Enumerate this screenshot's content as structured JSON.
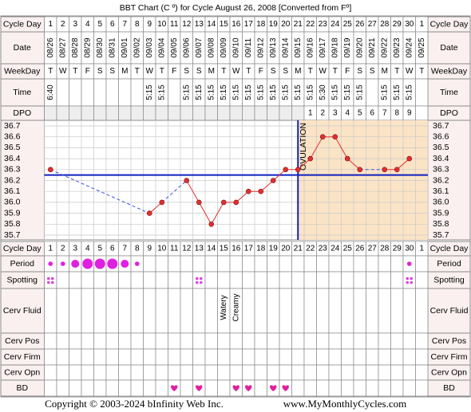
{
  "title": "BBT Chart (C º) for Cycle August 26, 2008  [Converted from Fº]",
  "row_labels": [
    "Cycle Day",
    "Date",
    "WeekDay",
    "Time",
    "DPO",
    "Cycle Day",
    "Period",
    "Spotting",
    "Cerv Fluid",
    "Cerv Pos",
    "Cerv Firm",
    "Cerv Opn",
    "BD"
  ],
  "cycle_days": [
    1,
    2,
    3,
    4,
    5,
    6,
    7,
    8,
    9,
    10,
    11,
    12,
    13,
    14,
    15,
    16,
    17,
    18,
    19,
    20,
    21,
    22,
    23,
    24,
    25,
    26,
    27,
    28,
    29,
    30,
    1
  ],
  "dates": [
    "08/26",
    "08/27",
    "08/28",
    "08/29",
    "08/30",
    "08/31",
    "09/01",
    "09/02",
    "09/03",
    "09/04",
    "09/05",
    "09/06",
    "09/07",
    "09/08",
    "09/09",
    "09/10",
    "09/11",
    "09/12",
    "09/13",
    "09/14",
    "09/15",
    "09/16",
    "09/17",
    "09/18",
    "09/19",
    "09/20",
    "09/21",
    "09/22",
    "09/23",
    "09/24",
    "09/25"
  ],
  "weekdays": [
    "T",
    "W",
    "T",
    "F",
    "S",
    "S",
    "M",
    "T",
    "W",
    "T",
    "F",
    "S",
    "S",
    "M",
    "T",
    "W",
    "T",
    "F",
    "S",
    "S",
    "M",
    "T",
    "W",
    "T",
    "F",
    "S",
    "S",
    "M",
    "T",
    "W",
    "T"
  ],
  "times": [
    "6:40",
    null,
    null,
    null,
    null,
    null,
    null,
    null,
    "5:15",
    "5:15",
    null,
    "5:15",
    "5:15",
    "5:15",
    "5:15",
    "5:15",
    "5:15",
    "5:15",
    "5:15",
    "5:15",
    "5:15",
    "5:15",
    "5:30",
    "5:15",
    "5:15",
    "5:15",
    null,
    "5:15",
    "5:15",
    "5:15",
    null
  ],
  "dpo": [
    null,
    null,
    null,
    null,
    null,
    null,
    null,
    null,
    null,
    null,
    null,
    null,
    null,
    null,
    null,
    null,
    null,
    null,
    null,
    null,
    null,
    1,
    2,
    3,
    4,
    5,
    6,
    7,
    8,
    9,
    null
  ],
  "chart_data": {
    "type": "line",
    "ylim": [
      35.7,
      36.7
    ],
    "yticks": [
      36.7,
      36.6,
      36.5,
      36.4,
      36.3,
      36.2,
      36.1,
      {
        "value": 36.0,
        "label": "36.0"
      },
      35.9,
      35.8,
      35.7
    ],
    "values": [
      36.3,
      null,
      null,
      null,
      null,
      null,
      null,
      null,
      35.9,
      36.0,
      null,
      36.2,
      36.0,
      35.8,
      36.0,
      36.0,
      36.1,
      36.1,
      36.2,
      36.3,
      36.3,
      36.4,
      36.6,
      36.6,
      36.4,
      36.3,
      null,
      36.3,
      36.3,
      36.4,
      null
    ],
    "color": "#e03030",
    "coverline": 36.25,
    "ovulation_day": 21,
    "ovulation_label": "OVULATION"
  },
  "period": [
    1,
    1,
    2,
    3,
    3,
    3,
    2,
    1,
    null,
    null,
    null,
    null,
    null,
    null,
    null,
    null,
    null,
    null,
    null,
    null,
    null,
    null,
    null,
    null,
    null,
    null,
    null,
    null,
    null,
    1,
    null
  ],
  "spotting_days": [
    1,
    13,
    30
  ],
  "cerv_fluid": [
    null,
    null,
    null,
    null,
    null,
    null,
    null,
    null,
    null,
    null,
    null,
    null,
    null,
    null,
    "Watery",
    "Creamy",
    null,
    null,
    null,
    null,
    null,
    null,
    null,
    null,
    null,
    null,
    null,
    null,
    null,
    null,
    null
  ],
  "bd_days": [
    11,
    13,
    16,
    17,
    19,
    20
  ],
  "footer": {
    "copyright": "Copyright © 2003-2024 bInfinity Web Inc.",
    "url": "www.MyMonthlyCycles.com"
  }
}
